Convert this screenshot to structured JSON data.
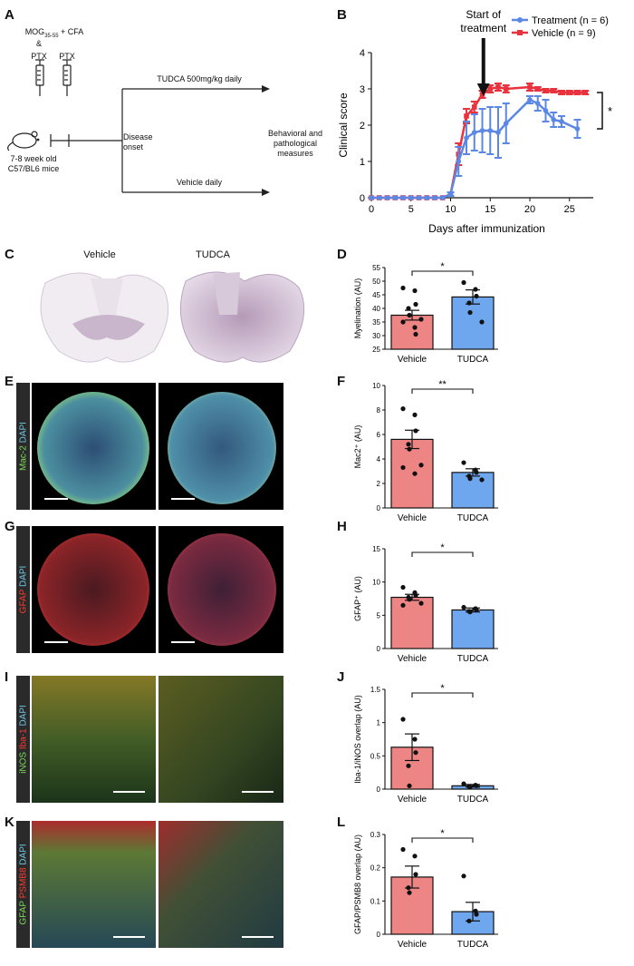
{
  "panels": {
    "A": "A",
    "B": "B",
    "C": "C",
    "D": "D",
    "E": "E",
    "F": "F",
    "G": "G",
    "H": "H",
    "I": "I",
    "J": "J",
    "K": "K",
    "L": "L"
  },
  "schematic": {
    "induction_main": "MOG",
    "induction_sub": "35-55",
    "induction_rest": " + CFA",
    "amp": "&",
    "ptx1": "PTX",
    "ptx2": "PTX",
    "mice": "7-8 week old C57/BL6 mice",
    "onset": "Disease onset",
    "tudca": "TUDCA 500mg/kg daily",
    "vehicle": "Vehicle daily",
    "outcome": "Behavioral and pathological measures"
  },
  "clinical": {
    "title_annotation": "Start of treatment",
    "xlabel": "Days after immunization",
    "ylabel": "Clinical score",
    "legend": [
      "Treatment (n = 6)",
      "Vehicle (n = 9)"
    ],
    "sig": "*",
    "colors": {
      "treatment": "#5b87e5",
      "vehicle": "#e8323d"
    }
  },
  "sections": {
    "c_vehicle": "Vehicle",
    "c_tudca": "TUDCA",
    "e_dapi": "DAPI",
    "e_mac2": "Mac-2",
    "g_dapi": "DAPI",
    "g_gfap": "GFAP",
    "i_inos": "iNOS",
    "i_iba": "Iba-1",
    "i_dapi": "DAPI",
    "k_gfap": "GFAP",
    "k_psmb8": "PSMB8",
    "k_dapi": "DAPI"
  },
  "chart_data": [
    {
      "type": "line",
      "panel": "B",
      "xlabel": "Days after immunization",
      "ylabel": "Clinical score",
      "xlim": [
        0,
        28
      ],
      "ylim": [
        0,
        4
      ],
      "xticks": [
        0,
        5,
        10,
        15,
        20,
        25
      ],
      "yticks": [
        0,
        1,
        2,
        3,
        4
      ],
      "series": [
        {
          "name": "Treatment (n = 6)",
          "x": [
            0,
            1,
            2,
            3,
            4,
            5,
            6,
            7,
            8,
            9,
            10,
            11,
            12,
            13,
            14,
            15,
            16,
            17,
            20,
            21,
            22,
            23,
            24,
            26
          ],
          "y": [
            0,
            0,
            0,
            0,
            0,
            0,
            0,
            0,
            0,
            0,
            0.1,
            1.0,
            1.65,
            1.8,
            1.85,
            1.85,
            1.8,
            2.05,
            2.7,
            2.6,
            2.4,
            2.15,
            2.1,
            1.9
          ],
          "err": [
            0,
            0,
            0,
            0,
            0,
            0,
            0,
            0,
            0,
            0,
            0.05,
            0.4,
            0.45,
            0.5,
            0.6,
            0.65,
            0.7,
            0.55,
            0.1,
            0.2,
            0.3,
            0.2,
            0.15,
            0.25
          ]
        },
        {
          "name": "Vehicle (n = 9)",
          "x": [
            0,
            1,
            2,
            3,
            4,
            5,
            6,
            7,
            8,
            9,
            10,
            11,
            12,
            13,
            14,
            15,
            16,
            17,
            20,
            21,
            22,
            23,
            24,
            25,
            26,
            27
          ],
          "y": [
            0,
            0,
            0,
            0,
            0,
            0,
            0,
            0,
            0,
            0,
            0.1,
            1.2,
            2.25,
            2.5,
            2.85,
            3.0,
            3.05,
            3.0,
            3.05,
            3.0,
            2.95,
            2.95,
            2.9,
            2.9,
            2.9,
            2.9
          ],
          "err": [
            0,
            0,
            0,
            0,
            0,
            0,
            0,
            0,
            0,
            0,
            0.05,
            0.3,
            0.2,
            0.15,
            0.1,
            0.1,
            0.1,
            0.1,
            0.1,
            0.05,
            0.05,
            0.05,
            0.05,
            0.05,
            0.05,
            0.05
          ]
        }
      ]
    },
    {
      "type": "bar",
      "panel": "D",
      "categories": [
        "Vehicle",
        "TUDCA"
      ],
      "values": [
        37.5,
        44.2
      ],
      "errors": [
        1.8,
        2.6
      ],
      "ylabel": "Myelination (AU)",
      "ylim": [
        25,
        55
      ],
      "yticks": [
        25,
        30,
        35,
        40,
        45,
        50,
        55
      ],
      "points": [
        [
          47.5,
          46.5,
          41.5,
          40,
          37.5,
          36,
          35,
          33,
          30.5
        ],
        [
          49.5,
          47,
          44.5,
          42,
          38.5,
          35
        ]
      ],
      "sig": "*"
    },
    {
      "type": "bar",
      "panel": "F",
      "categories": [
        "Vehicle",
        "TUDCA"
      ],
      "values": [
        5.6,
        2.9
      ],
      "errors": [
        0.75,
        0.3
      ],
      "ylabel": "Mac2⁺ (AU)",
      "ylim": [
        0,
        10
      ],
      "yticks": [
        0,
        2,
        4,
        6,
        8,
        10
      ],
      "points": [
        [
          8.1,
          7.6,
          6.3,
          5.2,
          4.8,
          3.5,
          3.3,
          2.8
        ],
        [
          3.7,
          3.1,
          2.9,
          2.6,
          2.4,
          2.3
        ]
      ],
      "sig": "**"
    },
    {
      "type": "bar",
      "panel": "H",
      "categories": [
        "Vehicle",
        "TUDCA"
      ],
      "values": [
        7.7,
        5.8
      ],
      "errors": [
        0.45,
        0.3
      ],
      "ylabel": "GFAP⁺ (AU)",
      "ylim": [
        0,
        15
      ],
      "yticks": [
        0,
        5,
        10,
        15
      ],
      "points": [
        [
          9.2,
          8.4,
          8.0,
          7.7,
          7.4,
          6.8,
          6.5
        ],
        [
          6.2,
          6.0,
          5.8,
          5.6,
          5.5
        ]
      ],
      "sig": "*"
    },
    {
      "type": "bar",
      "panel": "J",
      "categories": [
        "Vehicle",
        "TUDCA"
      ],
      "values": [
        0.63,
        0.05
      ],
      "errors": [
        0.2,
        0.02
      ],
      "ylabel": "Iba-1/iNOS overlap (AU)",
      "ylim": [
        0,
        1.5
      ],
      "yticks": [
        0.0,
        0.5,
        1.0,
        1.5
      ],
      "points": [
        [
          1.05,
          0.75,
          0.55,
          0.35,
          0.05
        ],
        [
          0.08,
          0.06,
          0.05,
          0.04,
          0.03
        ]
      ],
      "sig": "*"
    },
    {
      "type": "bar",
      "panel": "L",
      "categories": [
        "Vehicle",
        "TUDCA"
      ],
      "values": [
        0.172,
        0.068
      ],
      "errors": [
        0.033,
        0.028
      ],
      "ylabel": "GFAP/PSMB8 overlap (AU)",
      "ylim": [
        0,
        0.3
      ],
      "yticks": [
        0.0,
        0.1,
        0.2,
        0.3
      ],
      "points": [
        [
          0.255,
          0.235,
          0.18,
          0.14,
          0.125
        ],
        [
          0.175,
          0.07,
          0.06,
          0.04
        ]
      ],
      "sig": "*"
    }
  ]
}
